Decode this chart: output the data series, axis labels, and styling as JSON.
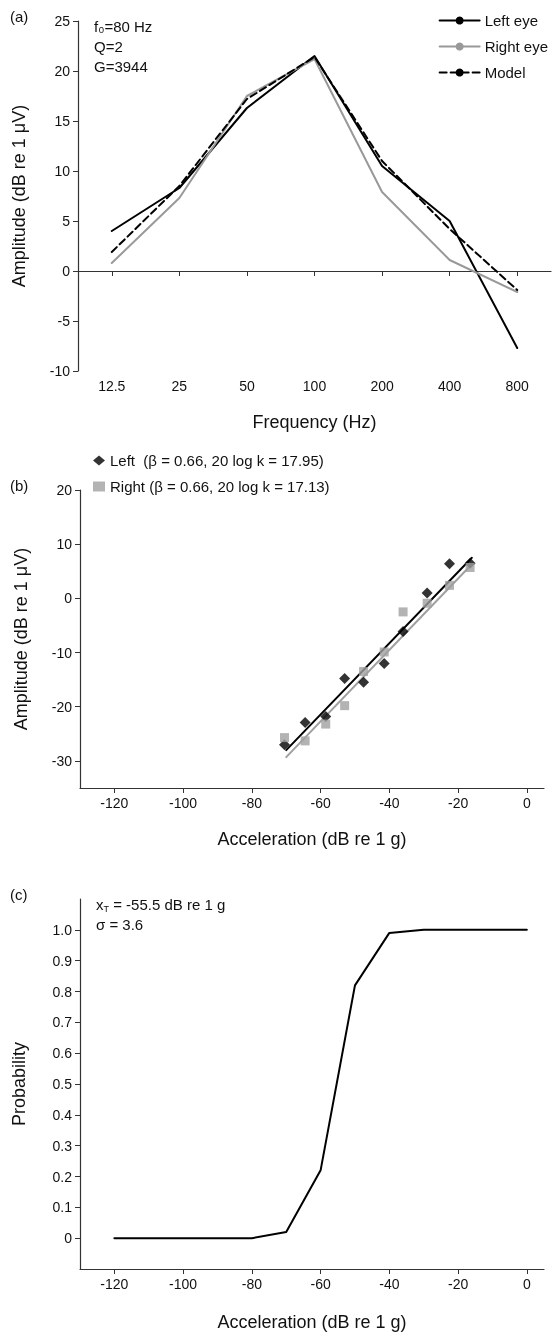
{
  "chart_data": [
    {
      "type": "line",
      "xlabel": "Frequency (Hz)",
      "ylabel": "Amplitude (dB re 1 μV)",
      "categories": [
        "12.5",
        "25",
        "50",
        "100",
        "200",
        "400",
        "800"
      ],
      "series": [
        {
          "name": "Left eye",
          "color": "#000000",
          "line_style": "solid",
          "values": [
            4,
            8.3,
            16.3,
            21.5,
            10.5,
            5,
            -7.7
          ]
        },
        {
          "name": "Right eye",
          "color": "#999999",
          "line_style": "solid",
          "values": [
            0.8,
            7.3,
            17.5,
            21.2,
            7.9,
            1.1,
            -2.1
          ]
        },
        {
          "name": "Model",
          "color": "#000000",
          "line_style": "dashed",
          "values": [
            1.9,
            8.5,
            17.2,
            21.4,
            11,
            4.2,
            -1.9
          ]
        }
      ],
      "ylim": [
        -10,
        25
      ],
      "yticks": [
        -10,
        -5,
        0,
        5,
        10,
        15,
        20,
        25
      ],
      "legend": "top right",
      "marker": "none",
      "annotations": [
        "(a)",
        "f₀=80 Hz",
        "Q=2",
        "G=3944"
      ]
    },
    {
      "type": "scatter",
      "xlabel": "Acceleration (dB re 1 g)",
      "ylabel": "Amplitude (dB re 1 μV)",
      "series": [
        {
          "name": "Left  (β = 0.66, 20 log k = 17.95)",
          "color": "#000000",
          "marker": "diamond",
          "x": [
            -70.5,
            -64.5,
            -58.5,
            -53,
            -47.5,
            -41.5,
            -36,
            -29,
            -22.5,
            -16.5
          ],
          "values": [
            -27,
            -22.9,
            -21.8,
            -14.8,
            -15.5,
            -12,
            -6.1,
            1,
            6.4,
            6.5
          ]
        },
        {
          "name": "Right (β = 0.66, 20 log k = 17.13)",
          "color": "#a0a0a0",
          "marker": "square",
          "x": [
            -70.5,
            -64.5,
            -58.5,
            -53,
            -47.5,
            -41.5,
            -36,
            -29,
            -22.5,
            -16.5
          ],
          "values": [
            -25.7,
            -26.3,
            -23.2,
            -19.8,
            -13.5,
            -9.9,
            -2.5,
            -0.9,
            2.4,
            5.7
          ]
        },
        {
          "type": "line",
          "color": "#000000",
          "marker": "none",
          "x": [
            -70,
            -16
          ],
          "values": [
            -28,
            7.5
          ]
        },
        {
          "type": "line",
          "color": "#a0a0a0",
          "marker": "none",
          "x": [
            -70,
            -16
          ],
          "values": [
            -29.3,
            6.3
          ]
        }
      ],
      "xlim": [
        -130,
        5
      ],
      "xticks": [
        -120,
        -100,
        -80,
        -60,
        -40,
        -20,
        0
      ],
      "ylim": [
        -35,
        20
      ],
      "yticks": [
        -30,
        -20,
        -10,
        0,
        10,
        20
      ],
      "legend": "top left",
      "annotations": [
        "(b)"
      ]
    },
    {
      "type": "line",
      "xlabel": "Acceleration (dB re 1 g)",
      "ylabel": "Probability",
      "series": [
        {
          "color": "#000000",
          "x": [
            -120,
            -110,
            -100,
            -90,
            -80,
            -70,
            -60,
            -50,
            -40,
            -30,
            -20,
            -10,
            0
          ],
          "values": [
            0,
            0,
            0,
            0,
            0,
            0.02,
            0.22,
            0.82,
            0.99,
            1,
            1,
            1,
            1
          ]
        }
      ],
      "xlim": [
        -130,
        5
      ],
      "xticks": [
        -120,
        -100,
        -80,
        -60,
        -40,
        -20,
        0
      ],
      "ylim": [
        -0.1,
        1.1
      ],
      "yticks": [
        0,
        0.1,
        0.2,
        0.3,
        0.4,
        0.5,
        0.6,
        0.7,
        0.8,
        0.9,
        {
          "value": 1,
          "label": "1.0"
        }
      ],
      "marker": "none",
      "annotations": [
        "(c)",
        "x$_{T}$ = -55.5 dB re 1 g",
        "σ = 3.6"
      ]
    }
  ]
}
